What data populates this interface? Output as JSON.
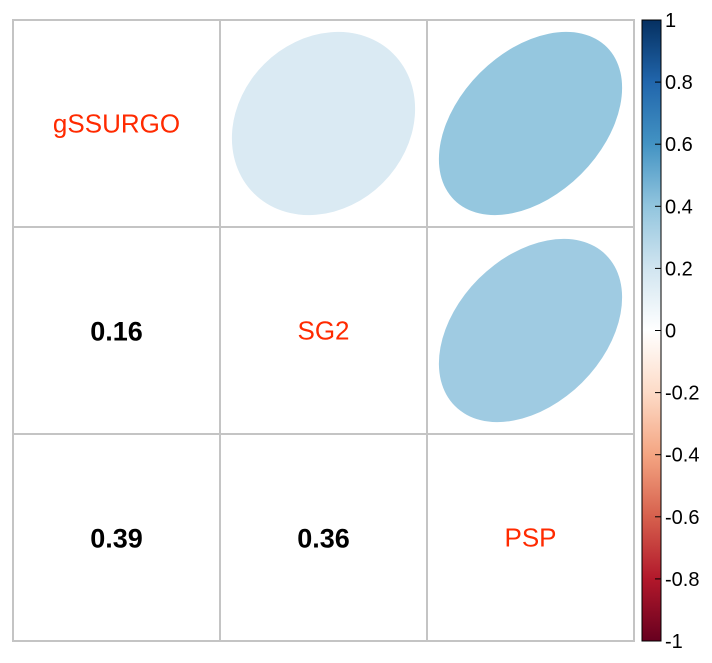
{
  "chart_data": {
    "type": "heatmap",
    "variables": [
      "gSSURGO",
      "SG2",
      "PSP"
    ],
    "matrix": [
      [
        1,
        0.16,
        0.39
      ],
      [
        0.16,
        1,
        0.36
      ],
      [
        0.39,
        0.36,
        1
      ]
    ],
    "upper_method": "ellipse",
    "lower_method": "number",
    "diagonal": "variable names",
    "colorbar": {
      "range": [
        -1,
        1
      ],
      "ticks": [
        1,
        0.8,
        0.6,
        0.4,
        0.2,
        0,
        -0.2,
        -0.4,
        -0.6,
        -0.8,
        -1
      ],
      "tick_labels": [
        "1",
        "0.8",
        "0.6",
        "0.4",
        "0.2",
        "0",
        "-0.2",
        "-0.4",
        "-0.6",
        "-0.8",
        "-1"
      ],
      "placement": "right"
    },
    "grid": true,
    "label_color": "#ff2a00",
    "colors": {
      "neg_strong": "#67001f",
      "neg_mid": "#d6604d",
      "neutral": "#f7f7f7",
      "pos_mid": "#4393c3",
      "pos_strong": "#053061"
    }
  }
}
